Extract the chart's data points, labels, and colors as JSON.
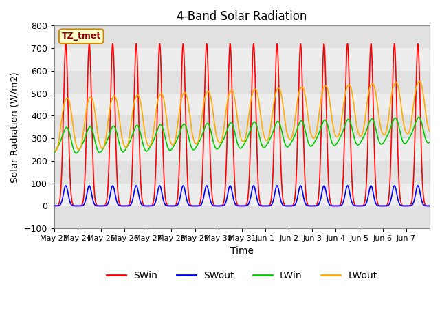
{
  "title": "4-Band Solar Radiation",
  "xlabel": "Time",
  "ylabel": "Solar Radiation (W/m2)",
  "ylim": [
    -100,
    800
  ],
  "yticks": [
    -100,
    0,
    100,
    200,
    300,
    400,
    500,
    600,
    700,
    800
  ],
  "date_labels": [
    "May 23",
    "May 24",
    "May 25",
    "May 26",
    "May 27",
    "May 28",
    "May 29",
    "May 30",
    "May 31",
    "Jun 1",
    "Jun 2",
    "Jun 3",
    "Jun 4",
    "Jun 5",
    "Jun 6",
    "Jun 7"
  ],
  "n_days": 16,
  "SWin_peak": 720,
  "SWout_peak": 90,
  "LWin_base": 285,
  "LWin_amp": 55,
  "LWout_base": 360,
  "LWout_amp": 120,
  "colors": {
    "SWin": "#ff0000",
    "SWout": "#0000ff",
    "LWin": "#00cc00",
    "LWout": "#ffaa00"
  },
  "legend_labels": [
    "SWin",
    "SWout",
    "LWin",
    "LWout"
  ],
  "tz_label": "TZ_tmet",
  "bg_color": "#ffffff",
  "plot_bg": "#f0f0f0"
}
